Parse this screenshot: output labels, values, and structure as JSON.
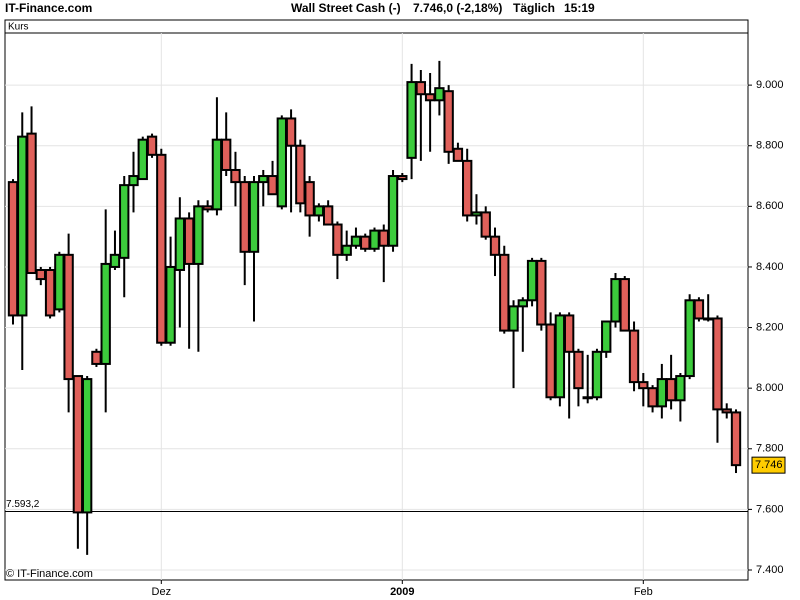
{
  "chart_data": {
    "type": "candlestick",
    "brand": "IT-Finance.com",
    "title": "Wall Street Cash (-)",
    "quote": "7.746,0 (-2,18%)",
    "interval": "Täglich",
    "time": "15:19",
    "panel_label": "Kurs",
    "footer": "© IT-Finance.com",
    "categories": [
      null,
      null,
      null,
      null,
      null,
      null,
      null,
      null,
      null,
      null,
      null,
      null,
      null,
      null,
      null,
      null,
      "Dez",
      null,
      null,
      null,
      null,
      null,
      null,
      null,
      null,
      null,
      null,
      null,
      null,
      null,
      null,
      null,
      null,
      null,
      null,
      null,
      null,
      null,
      null,
      null,
      null,
      null,
      "2009",
      null,
      null,
      null,
      null,
      null,
      null,
      null,
      null,
      null,
      null,
      null,
      null,
      null,
      null,
      null,
      null,
      null,
      null,
      null,
      null,
      null,
      null,
      null,
      null,
      null,
      "Feb",
      null,
      null,
      null,
      null,
      null,
      null,
      null,
      null,
      null,
      null
    ],
    "open": [
      8680,
      8240,
      8840,
      8390,
      8390,
      8260,
      8440,
      8040,
      7590,
      8120,
      8080,
      8400,
      8430,
      8670,
      8690,
      8830,
      8770,
      8150,
      8390,
      8560,
      8410,
      8600,
      8590,
      8820,
      8720,
      8680,
      8450,
      8680,
      8700,
      8600,
      8890,
      8800,
      8680,
      8570,
      8600,
      8540,
      8440,
      8470,
      8500,
      8460,
      8520,
      8470,
      8700,
      8760,
      9010,
      8970,
      8950,
      8980,
      8790,
      8750,
      8570,
      8580,
      8500,
      8440,
      8190,
      8270,
      8290,
      8420,
      8210,
      7970,
      8240,
      8120,
      7970,
      7970,
      8120,
      8220,
      8360,
      8190,
      8020,
      8000,
      7940,
      8030,
      7960,
      8040,
      8290,
      8230,
      8230,
      7930,
      7920
    ],
    "high": [
      8690,
      8910,
      8930,
      8400,
      8400,
      8450,
      8510,
      8040,
      8040,
      8130,
      8590,
      8520,
      8700,
      8780,
      8830,
      8840,
      8790,
      8500,
      8630,
      8580,
      8620,
      8620,
      8960,
      8910,
      8780,
      8700,
      8700,
      8720,
      8750,
      8900,
      8920,
      8820,
      8700,
      8610,
      8620,
      8550,
      8520,
      8530,
      8510,
      8530,
      8540,
      8720,
      8710,
      9070,
      9050,
      9040,
      9080,
      9000,
      8810,
      8790,
      8640,
      8600,
      8530,
      8470,
      8290,
      8300,
      8430,
      8430,
      8250,
      8250,
      8250,
      8130,
      8110,
      8130,
      8220,
      8380,
      8370,
      8220,
      8050,
      8010,
      8080,
      8110,
      8050,
      8310,
      8300,
      8310,
      8240,
      7950,
      7930
    ],
    "low": [
      8210,
      8060,
      8380,
      8340,
      8230,
      8250,
      7920,
      7470,
      7450,
      8070,
      7920,
      8390,
      8300,
      8580,
      8690,
      8760,
      8140,
      8140,
      8200,
      8130,
      8120,
      8580,
      8570,
      8700,
      8600,
      8340,
      8220,
      8600,
      8640,
      8590,
      8580,
      8580,
      8500,
      8550,
      8540,
      8360,
      8420,
      8460,
      8450,
      8450,
      8350,
      8450,
      8680,
      8690,
      8750,
      8780,
      8900,
      8740,
      8750,
      8550,
      8540,
      8490,
      8370,
      8180,
      8000,
      8120,
      8270,
      8190,
      7960,
      7940,
      7900,
      7940,
      7950,
      7960,
      8100,
      8200,
      8200,
      7990,
      7940,
      7920,
      7900,
      7930,
      7890,
      8030,
      8220,
      8220,
      7820,
      7900,
      7720
    ],
    "close": [
      8240,
      8830,
      8380,
      8360,
      8240,
      8440,
      8030,
      7590,
      8030,
      8080,
      8410,
      8440,
      8670,
      8700,
      8820,
      8770,
      8150,
      8400,
      8560,
      8410,
      8600,
      8590,
      8820,
      8720,
      8680,
      8450,
      8680,
      8700,
      8640,
      8890,
      8800,
      8610,
      8570,
      8600,
      8540,
      8440,
      8470,
      8500,
      8460,
      8520,
      8470,
      8700,
      8690,
      9010,
      8970,
      8950,
      8990,
      8780,
      8750,
      8570,
      8580,
      8500,
      8440,
      8190,
      8270,
      8290,
      8420,
      8210,
      7970,
      8240,
      8120,
      8000,
      7970,
      8120,
      8220,
      8360,
      8190,
      8020,
      8000,
      7940,
      8030,
      7960,
      8040,
      8290,
      8230,
      8230,
      7930,
      7920,
      7746
    ],
    "up_color": "#3ccc3c",
    "down_color": "#e0605a",
    "ylim": [
      7367,
      9172
    ],
    "yticks": [
      {
        "value": 7400,
        "label": "7.400"
      },
      {
        "value": 7600,
        "label": "7.600"
      },
      {
        "value": 7800,
        "label": "7.800"
      },
      {
        "value": 8000,
        "label": "8.000"
      },
      {
        "value": 8200,
        "label": "8.200"
      },
      {
        "value": 8400,
        "label": "8.400"
      },
      {
        "value": 8600,
        "label": "8.600"
      },
      {
        "value": 8800,
        "label": "8.800"
      },
      {
        "value": 9000,
        "label": "9.000"
      }
    ],
    "reference_line": {
      "value": 7593.2,
      "label": "7.593,2"
    },
    "last_price": {
      "value": 7746,
      "label": "7.746"
    },
    "grid": true
  }
}
